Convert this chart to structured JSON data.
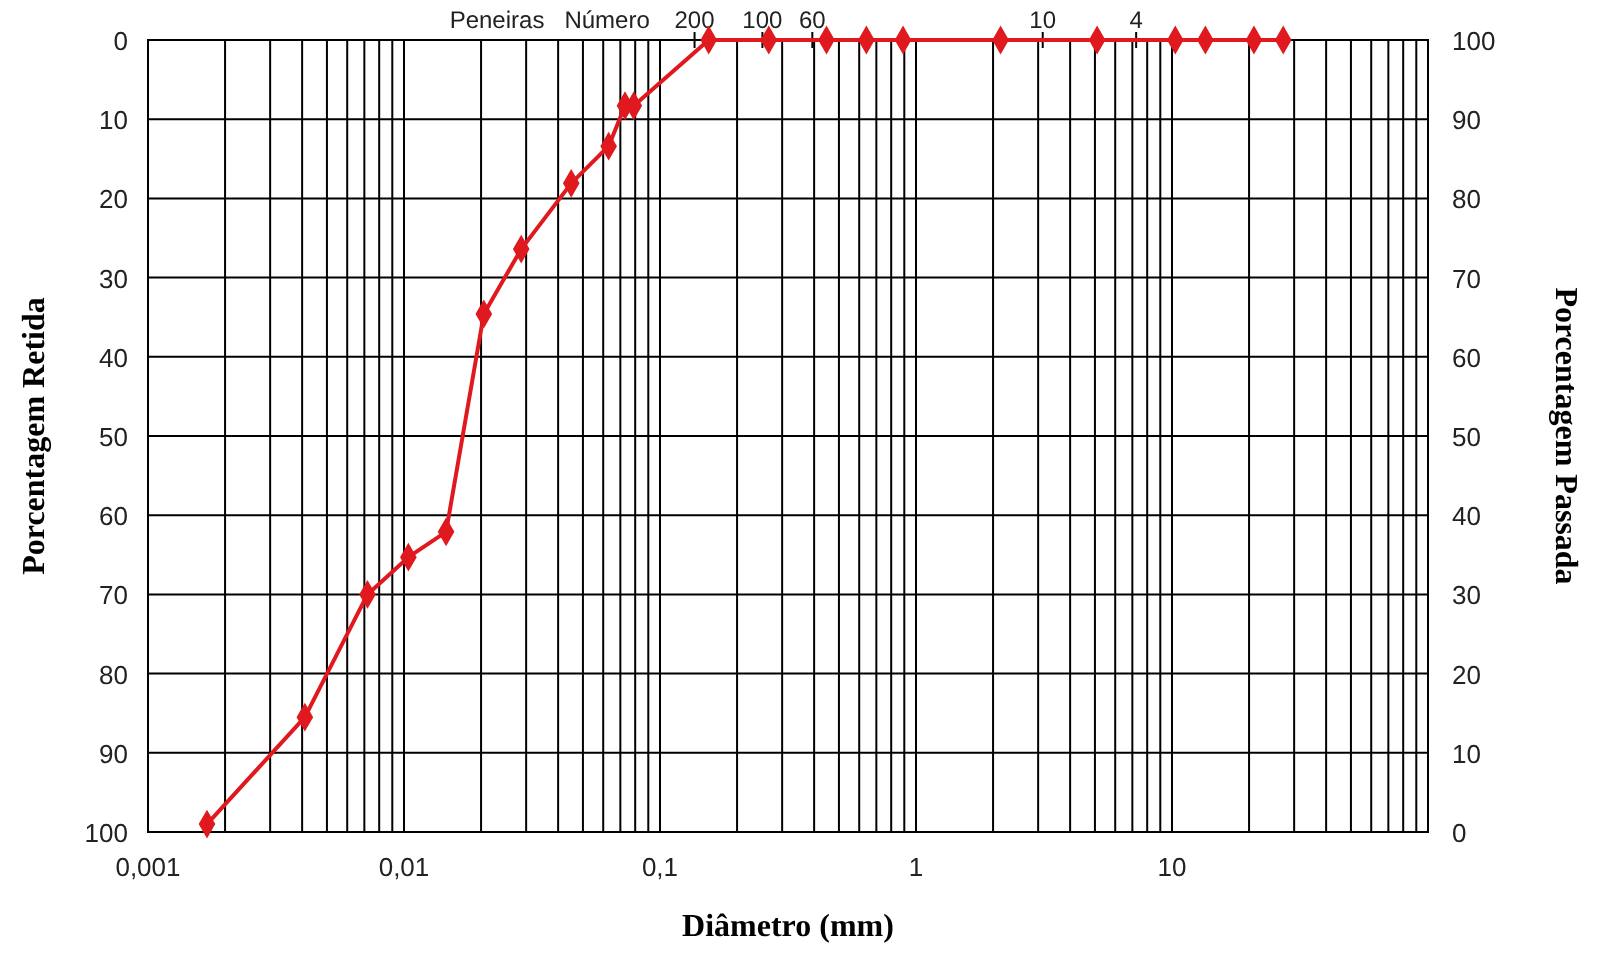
{
  "chart_data": {
    "type": "line",
    "xlabel": "Diâmetro (mm)",
    "ylabel": "Porcentagem Retida",
    "y2label": "Porcentagem Passada",
    "annotations": [
      "Peneiras   Número",
      "200",
      "100",
      "60",
      "10",
      "4"
    ],
    "log": "x",
    "grid": true,
    "marker": "diamond",
    "line_style": "solid",
    "xlim": [
      0.001,
      100
    ],
    "xticks": [
      {
        "value": 0.001,
        "label": "0,001"
      },
      {
        "value": 0.01,
        "label": "0,01"
      },
      {
        "value": 0.1,
        "label": "0,1"
      },
      1,
      10
    ],
    "ylim": [
      100,
      0
    ],
    "yticks": [
      0,
      10,
      20,
      30,
      40,
      50,
      60,
      70,
      80,
      90,
      100
    ],
    "y2lim": [
      0,
      100
    ],
    "y2ticks": [
      0,
      10,
      20,
      30,
      40,
      50,
      60,
      70,
      80,
      90,
      100
    ],
    "series": [
      {
        "color": "#e0191e",
        "x": [
          0.0017,
          0.0041,
          0.0072,
          0.0104,
          0.0146,
          0.0205,
          0.0287,
          0.045,
          0.063,
          0.073,
          0.079,
          0.155,
          0.266,
          0.447,
          0.64,
          0.89,
          2.14,
          5.1,
          10.3,
          13.5,
          20.9,
          27.2
        ],
        "values": [
          99,
          85.5,
          70,
          65.3,
          62.1,
          34.6,
          26.4,
          18.1,
          13.4,
          8.3,
          8.3,
          0,
          0,
          0,
          0,
          0,
          0,
          0,
          0,
          0,
          0,
          0
        ]
      }
    ]
  }
}
